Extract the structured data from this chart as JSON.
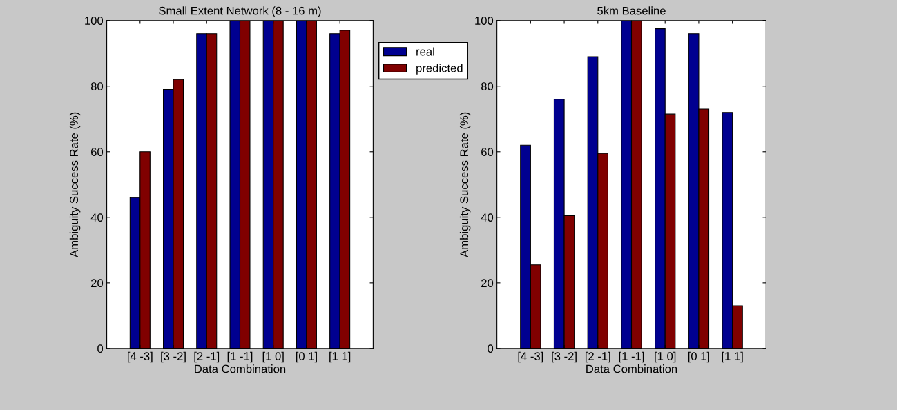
{
  "chart_data": [
    {
      "type": "bar",
      "title": "Small Extent Network (8 - 16 m)",
      "xlabel": "Data Combination",
      "ylabel": "Ambiguity Success Rate (%)",
      "categories": [
        "[4 -3]",
        "[3 -2]",
        "[2 -1]",
        "[1 -1]",
        "[1 0]",
        "[0 1]",
        "[1 1]"
      ],
      "series": [
        {
          "name": "real",
          "color": "#000090",
          "values": [
            46,
            79,
            96,
            100,
            100,
            100,
            96
          ]
        },
        {
          "name": "predicted",
          "color": "#800000",
          "values": [
            60,
            82,
            96,
            100,
            100,
            100,
            97
          ]
        }
      ],
      "ylim": [
        0,
        100
      ],
      "yticks": [
        0,
        20,
        40,
        60,
        80,
        100
      ],
      "grid": false,
      "legend": "right"
    },
    {
      "type": "bar",
      "title": "5km Baseline",
      "xlabel": "Data Combination",
      "ylabel": "Ambiguity Success Rate (%)",
      "categories": [
        "[4 -3]",
        "[3 -2]",
        "[2 -1]",
        "[1 -1]",
        "[1 0]",
        "[0 1]",
        "[1 1]"
      ],
      "series": [
        {
          "color": "#000090",
          "values": [
            62,
            76,
            89,
            100,
            97.5,
            96,
            72
          ]
        },
        {
          "color": "#800000",
          "values": [
            25.5,
            40.5,
            59.5,
            100,
            71.5,
            73,
            13
          ]
        }
      ],
      "ylim": [
        0,
        100
      ],
      "yticks": [
        0,
        20,
        40,
        60,
        80,
        100
      ],
      "grid": false
    }
  ]
}
